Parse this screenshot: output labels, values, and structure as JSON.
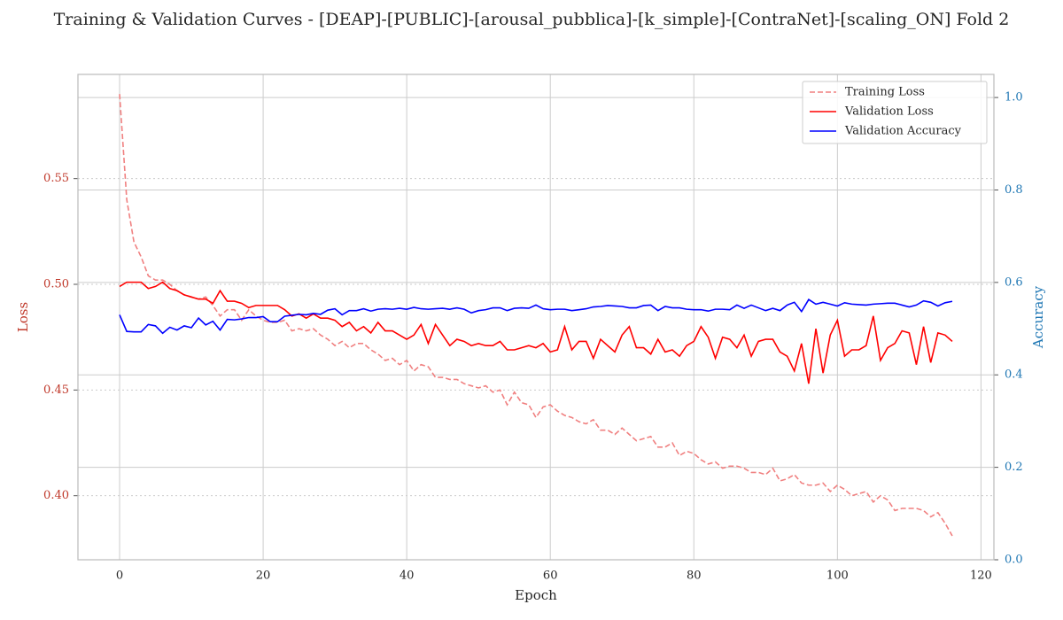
{
  "chart_data": {
    "type": "line",
    "title": "Training & Validation Curves - [DEAP]-[PUBLIC]-[arousal_pubblica]-[k_simple]-[ContraNet]-[scaling_ON] Fold 2",
    "xlabel": "Epoch",
    "ylabel": "Loss",
    "y2label": "Accuracy",
    "xlim": [
      -5.8,
      121.8
    ],
    "xticks": [
      0,
      20,
      40,
      60,
      80,
      100,
      120
    ],
    "ylim": [
      0.3697,
      0.5993
    ],
    "yticks": [
      {
        "value": 0.4,
        "label": "0.40"
      },
      {
        "value": 0.45,
        "label": "0.45"
      },
      {
        "value": 0.5,
        "label": "0.50"
      },
      {
        "value": 0.55,
        "label": "0.55"
      }
    ],
    "y2lim": [
      0,
      1.05
    ],
    "y2ticks": [
      {
        "value": 0,
        "label": "0.0"
      },
      {
        "value": 0.2,
        "label": "0.2"
      },
      {
        "value": 0.4,
        "label": "0.4"
      },
      {
        "value": 0.6,
        "label": "0.6"
      },
      {
        "value": 0.8,
        "label": "0.8"
      },
      {
        "value": 1,
        "label": "1.0"
      }
    ],
    "grid": true,
    "legend": "upper right",
    "x": [
      0,
      1,
      2,
      3,
      4,
      5,
      6,
      7,
      8,
      9,
      10,
      11,
      12,
      13,
      14,
      15,
      16,
      17,
      18,
      19,
      20,
      21,
      22,
      23,
      24,
      25,
      26,
      27,
      28,
      29,
      30,
      31,
      32,
      33,
      34,
      35,
      36,
      37,
      38,
      39,
      40,
      41,
      42,
      43,
      44,
      45,
      46,
      47,
      48,
      49,
      50,
      51,
      52,
      53,
      54,
      55,
      56,
      57,
      58,
      59,
      60,
      61,
      62,
      63,
      64,
      65,
      66,
      67,
      68,
      69,
      70,
      71,
      72,
      73,
      74,
      75,
      76,
      77,
      78,
      79,
      80,
      81,
      82,
      83,
      84,
      85,
      86,
      87,
      88,
      89,
      90,
      91,
      92,
      93,
      94,
      95,
      96,
      97,
      98,
      99,
      100,
      101,
      102,
      103,
      104,
      105,
      106,
      107,
      108,
      109,
      110,
      111,
      112,
      113,
      114,
      115,
      116
    ],
    "series": [
      {
        "name": "Training Loss",
        "color": "#f08080",
        "dashed": true,
        "values": [
          0.59,
          0.54,
          0.52,
          0.513,
          0.504,
          0.502,
          0.502,
          0.5,
          0.497,
          0.495,
          0.494,
          0.493,
          0.494,
          0.49,
          0.485,
          0.488,
          0.488,
          0.483,
          0.488,
          0.485,
          0.483,
          0.482,
          0.482,
          0.483,
          0.478,
          0.479,
          0.478,
          0.479,
          0.476,
          0.474,
          0.471,
          0.473,
          0.47,
          0.472,
          0.472,
          0.469,
          0.467,
          0.464,
          0.465,
          0.462,
          0.464,
          0.459,
          0.462,
          0.461,
          0.456,
          0.456,
          0.455,
          0.455,
          0.453,
          0.452,
          0.451,
          0.452,
          0.449,
          0.45,
          0.443,
          0.449,
          0.444,
          0.443,
          0.437,
          0.442,
          0.443,
          0.44,
          0.438,
          0.437,
          0.435,
          0.434,
          0.436,
          0.431,
          0.431,
          0.429,
          0.432,
          0.429,
          0.426,
          0.427,
          0.428,
          0.423,
          0.423,
          0.425,
          0.419,
          0.421,
          0.42,
          0.417,
          0.415,
          0.416,
          0.413,
          0.414,
          0.414,
          0.413,
          0.411,
          0.411,
          0.41,
          0.413,
          0.407,
          0.408,
          0.41,
          0.406,
          0.405,
          0.405,
          0.406,
          0.402,
          0.405,
          0.403,
          0.4,
          0.401,
          0.402,
          0.397,
          0.4,
          0.398,
          0.393,
          0.394,
          0.394,
          0.394,
          0.393,
          0.39,
          0.392,
          0.387,
          0.381
        ]
      },
      {
        "name": "Validation Loss",
        "color": "#ff0000",
        "values": [
          0.499,
          0.501,
          0.501,
          0.501,
          0.498,
          0.499,
          0.501,
          0.498,
          0.497,
          0.495,
          0.494,
          0.493,
          0.493,
          0.491,
          0.497,
          0.492,
          0.492,
          0.491,
          0.489,
          0.49,
          0.49,
          0.49,
          0.49,
          0.488,
          0.485,
          0.486,
          0.484,
          0.486,
          0.484,
          0.484,
          0.483,
          0.48,
          0.482,
          0.478,
          0.48,
          0.477,
          0.482,
          0.478,
          0.478,
          0.476,
          0.474,
          0.476,
          0.481,
          0.472,
          0.481,
          0.476,
          0.471,
          0.474,
          0.473,
          0.471,
          0.472,
          0.471,
          0.471,
          0.473,
          0.469,
          0.469,
          0.47,
          0.471,
          0.47,
          0.472,
          0.468,
          0.469,
          0.48,
          0.469,
          0.473,
          0.473,
          0.465,
          0.474,
          0.471,
          0.468,
          0.476,
          0.48,
          0.47,
          0.47,
          0.467,
          0.474,
          0.468,
          0.469,
          0.466,
          0.471,
          0.473,
          0.48,
          0.475,
          0.465,
          0.475,
          0.474,
          0.47,
          0.476,
          0.466,
          0.473,
          0.474,
          0.474,
          0.468,
          0.466,
          0.459,
          0.472,
          0.453,
          0.479,
          0.458,
          0.476,
          0.483,
          0.466,
          0.469,
          0.469,
          0.471,
          0.485,
          0.464,
          0.47,
          0.472,
          0.478,
          0.477,
          0.462,
          0.48,
          0.463,
          0.477,
          0.476,
          0.473
        ]
      },
      {
        "name": "Validation Accuracy",
        "color": "#0000ff",
        "axis": "y2",
        "values": [
          0.53,
          0.494,
          0.493,
          0.493,
          0.509,
          0.506,
          0.49,
          0.503,
          0.497,
          0.506,
          0.502,
          0.523,
          0.508,
          0.516,
          0.497,
          0.52,
          0.519,
          0.521,
          0.524,
          0.524,
          0.526,
          0.515,
          0.515,
          0.527,
          0.529,
          0.531,
          0.53,
          0.533,
          0.531,
          0.54,
          0.543,
          0.53,
          0.539,
          0.539,
          0.543,
          0.538,
          0.542,
          0.543,
          0.542,
          0.544,
          0.542,
          0.546,
          0.543,
          0.542,
          0.543,
          0.544,
          0.542,
          0.545,
          0.542,
          0.534,
          0.539,
          0.541,
          0.545,
          0.545,
          0.539,
          0.544,
          0.545,
          0.544,
          0.551,
          0.543,
          0.541,
          0.542,
          0.542,
          0.539,
          0.541,
          0.543,
          0.547,
          0.548,
          0.55,
          0.549,
          0.548,
          0.545,
          0.545,
          0.55,
          0.551,
          0.539,
          0.548,
          0.545,
          0.545,
          0.542,
          0.541,
          0.541,
          0.538,
          0.542,
          0.542,
          0.541,
          0.551,
          0.544,
          0.551,
          0.545,
          0.539,
          0.544,
          0.539,
          0.551,
          0.557,
          0.537,
          0.563,
          0.553,
          0.557,
          0.553,
          0.549,
          0.556,
          0.553,
          0.552,
          0.551,
          0.553,
          0.554,
          0.555,
          0.555,
          0.551,
          0.547,
          0.551,
          0.56,
          0.557,
          0.549,
          0.556,
          0.559
        ]
      }
    ]
  }
}
